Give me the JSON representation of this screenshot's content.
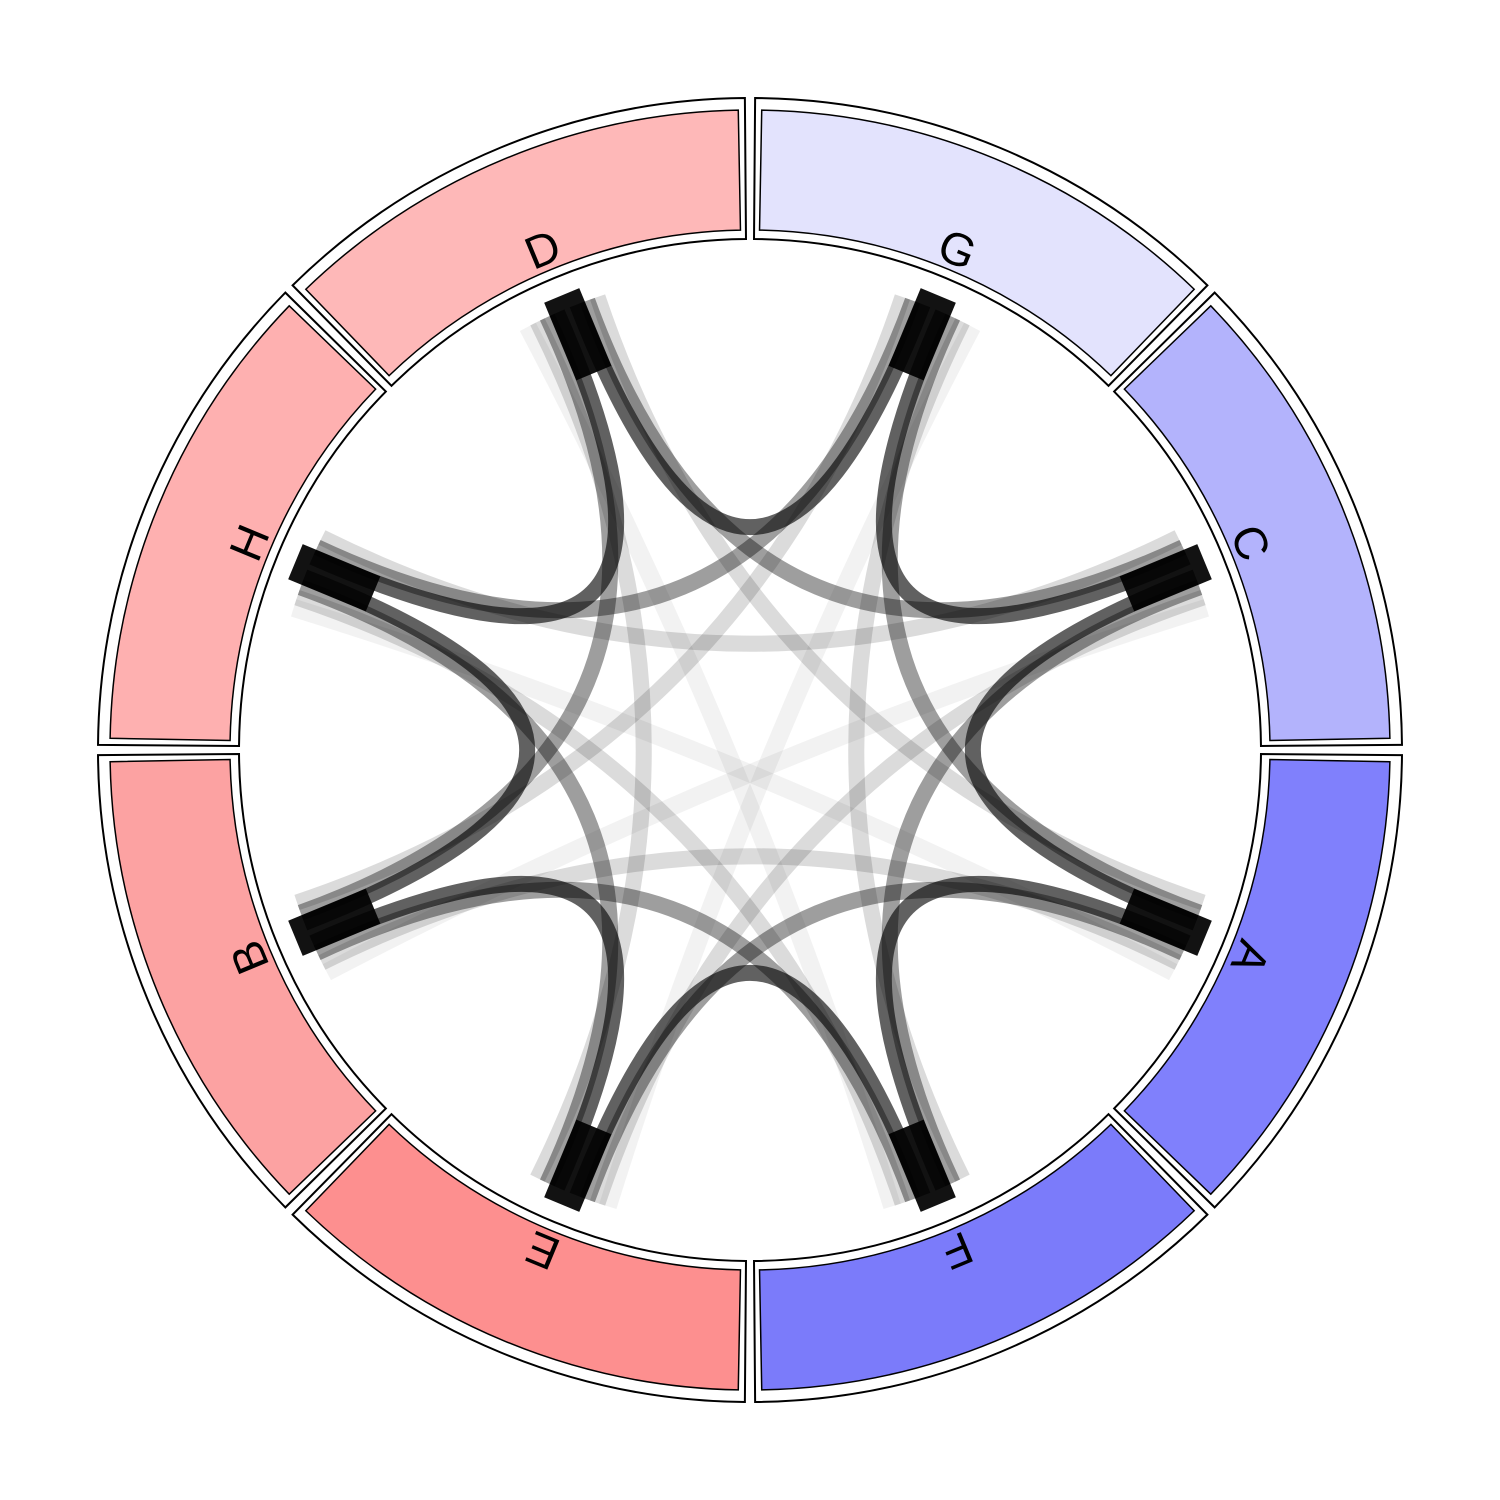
{
  "chart_data": {
    "type": "chord",
    "nodes": [
      {
        "name": "G",
        "color": "#e3e3fd"
      },
      {
        "name": "C",
        "color": "#b3b3fc"
      },
      {
        "name": "A",
        "color": "#8080fc"
      },
      {
        "name": "F",
        "color": "#7b7bfa"
      },
      {
        "name": "E",
        "color": "#fd8f8f"
      },
      {
        "name": "B",
        "color": "#fca2a2"
      },
      {
        "name": "H",
        "color": "#feb0b0"
      },
      {
        "name": "D",
        "color": "#feb8b8"
      }
    ],
    "link_color": "#000000"
  }
}
